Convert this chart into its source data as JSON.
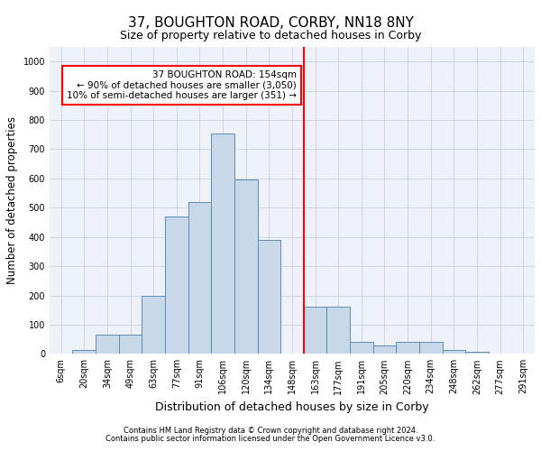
{
  "title": "37, BOUGHTON ROAD, CORBY, NN18 8NY",
  "subtitle": "Size of property relative to detached houses in Corby",
  "xlabel": "Distribution of detached houses by size in Corby",
  "ylabel": "Number of detached properties",
  "footnote1": "Contains HM Land Registry data © Crown copyright and database right 2024.",
  "footnote2": "Contains public sector information licensed under the Open Government Licence v3.0.",
  "bin_labels": [
    "6sqm",
    "20sqm",
    "34sqm",
    "49sqm",
    "63sqm",
    "77sqm",
    "91sqm",
    "106sqm",
    "120sqm",
    "134sqm",
    "148sqm",
    "163sqm",
    "177sqm",
    "191sqm",
    "205sqm",
    "220sqm",
    "234sqm",
    "248sqm",
    "262sqm",
    "277sqm",
    "291sqm"
  ],
  "bar_values": [
    0,
    13,
    65,
    65,
    200,
    470,
    520,
    755,
    595,
    390,
    0,
    160,
    160,
    40,
    28,
    42,
    42,
    13,
    7,
    0,
    0
  ],
  "bar_color": "#c8d8e8",
  "bar_edge_color": "#5b8db8",
  "vline_color": "red",
  "annotation_box_text": "37 BOUGHTON ROAD: 154sqm\n← 90% of detached houses are smaller (3,050)\n10% of semi-detached houses are larger (351) →",
  "ylim": [
    0,
    1050
  ],
  "yticks": [
    0,
    100,
    200,
    300,
    400,
    500,
    600,
    700,
    800,
    900,
    1000
  ],
  "grid_color": "#c8d0e0",
  "bg_color": "#eef2f8",
  "title_fontsize": 11,
  "subtitle_fontsize": 9,
  "axis_label_fontsize": 8.5,
  "tick_fontsize": 7,
  "annotation_fontsize": 7.5,
  "footnote_fontsize": 6
}
